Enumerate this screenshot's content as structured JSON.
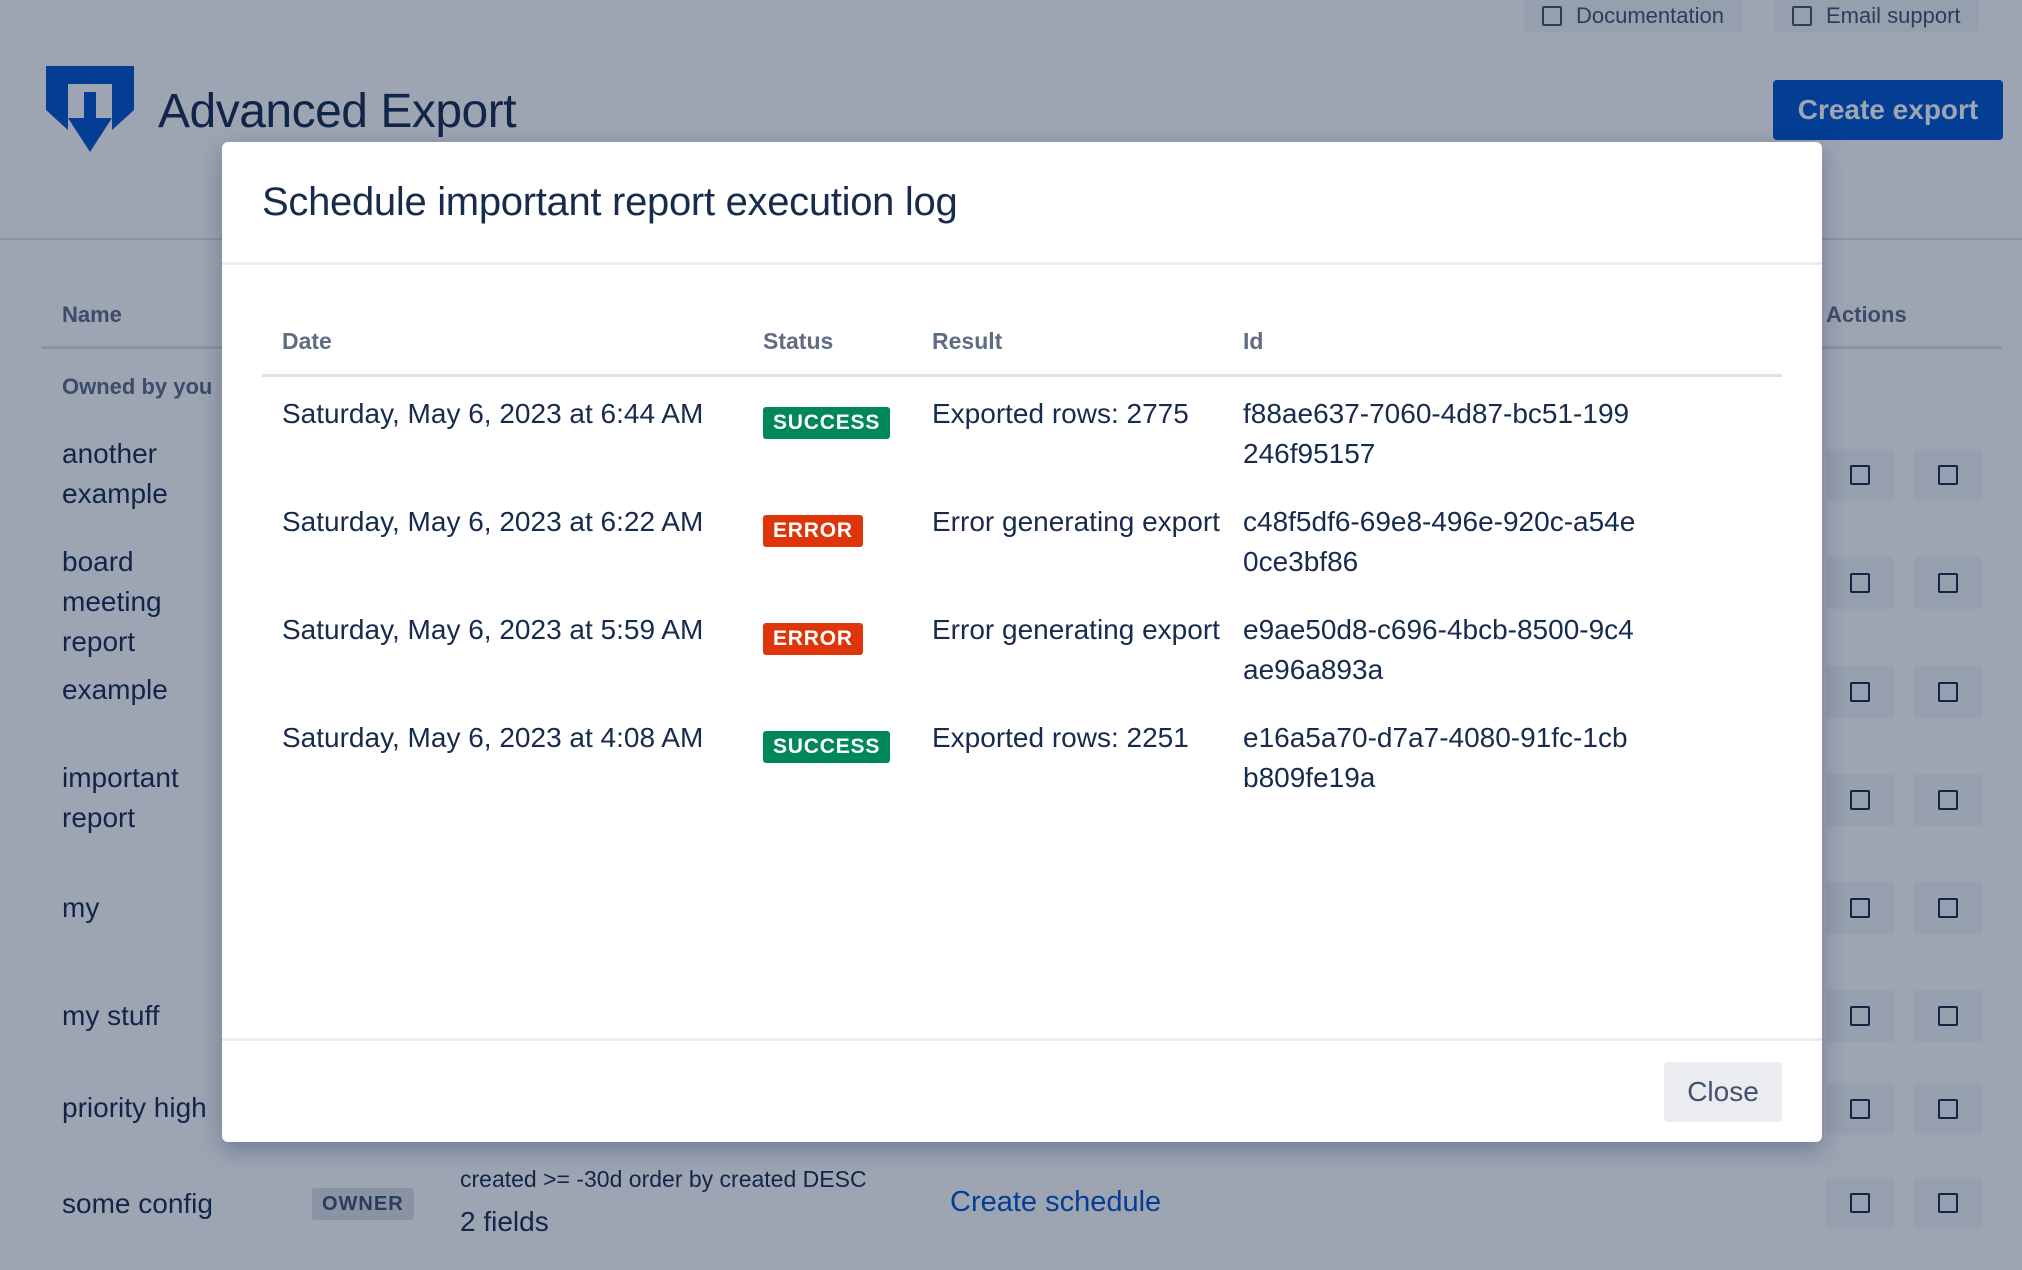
{
  "top_links": {
    "documentation": "Documentation",
    "email_support": "Email support"
  },
  "header": {
    "title": "Advanced Export",
    "create_button": "Create export"
  },
  "table": {
    "col_name": "Name",
    "col_actions": "Actions",
    "group_label": "Owned by you",
    "rows": [
      {
        "name": "another example"
      },
      {
        "name": "board meeting report"
      },
      {
        "name": "example"
      },
      {
        "name": "important report"
      },
      {
        "name": "my"
      },
      {
        "name": "my stuff"
      },
      {
        "name": "priority high"
      },
      {
        "name": "some config",
        "badge": "OWNER",
        "query": "created >= -30d order by created DESC",
        "fields": "2 fields",
        "schedule_link": "Create schedule"
      }
    ]
  },
  "modal": {
    "title": "Schedule important report execution log",
    "columns": {
      "date": "Date",
      "status": "Status",
      "result": "Result",
      "id": "Id"
    },
    "entries": [
      {
        "date": "Saturday, May 6, 2023 at 6:44 AM",
        "status": "SUCCESS",
        "result": "Exported rows: 2775",
        "id": "f88ae637-7060-4d87-bc51-199246f95157"
      },
      {
        "date": "Saturday, May 6, 2023 at 6:22 AM",
        "status": "ERROR",
        "result": "Error generating export",
        "id": "c48f5df6-69e8-496e-920c-a54e0ce3bf86"
      },
      {
        "date": "Saturday, May 6, 2023 at 5:59 AM",
        "status": "ERROR",
        "result": "Error generating export",
        "id": "e9ae50d8-c696-4bcb-8500-9c4ae96a893a"
      },
      {
        "date": "Saturday, May 6, 2023 at 4:08 AM",
        "status": "SUCCESS",
        "result": "Exported rows: 2251",
        "id": "e16a5a70-d7a7-4080-91fc-1cbb809fe19a"
      }
    ],
    "close_button": "Close"
  },
  "colors": {
    "brand": "#0052cc",
    "success": "#00875a",
    "error": "#de350b",
    "overlay": "rgba(9,30,66,0.4)"
  },
  "icons": {
    "logo": "download-arrow-shield-logo",
    "action": "square-icon"
  }
}
